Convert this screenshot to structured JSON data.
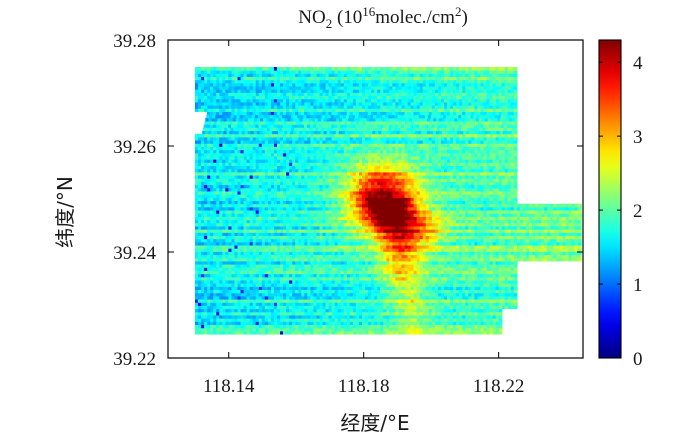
{
  "chart_data": {
    "type": "heatmap",
    "title": {
      "prefix": "NO",
      "prefix_sub": "2",
      "open": " (10",
      "exp": "16",
      "mid": "molec./cm",
      "unit_sup": "2",
      "close": ")"
    },
    "xlabel": "经度/°E",
    "ylabel": "纬度/°N",
    "xlim": [
      118.122,
      118.245
    ],
    "ylim": [
      39.22,
      39.28
    ],
    "xticks": [
      118.14,
      118.18,
      118.22
    ],
    "xtick_labels": [
      "118.14",
      "118.18",
      "118.22"
    ],
    "yticks": [
      39.22,
      39.24,
      39.26,
      39.28
    ],
    "ytick_labels": [
      "39.22",
      "39.24",
      "39.26",
      "39.28"
    ],
    "colorbar": {
      "range": [
        0,
        4.3
      ],
      "ticks": [
        0,
        1,
        2,
        3,
        4
      ],
      "tick_labels": [
        "0",
        "1",
        "2",
        "3",
        "4"
      ],
      "colormap": "jet"
    },
    "hotspot": {
      "max_value": 4.3,
      "center_lon": 118.185,
      "center_lat": 39.25,
      "plume_direction": "south to 39.225"
    },
    "background_level_west": 1.6,
    "background_level_east": 2.1,
    "colors": {
      "axis": "#000000",
      "background": "#ffffff"
    }
  }
}
